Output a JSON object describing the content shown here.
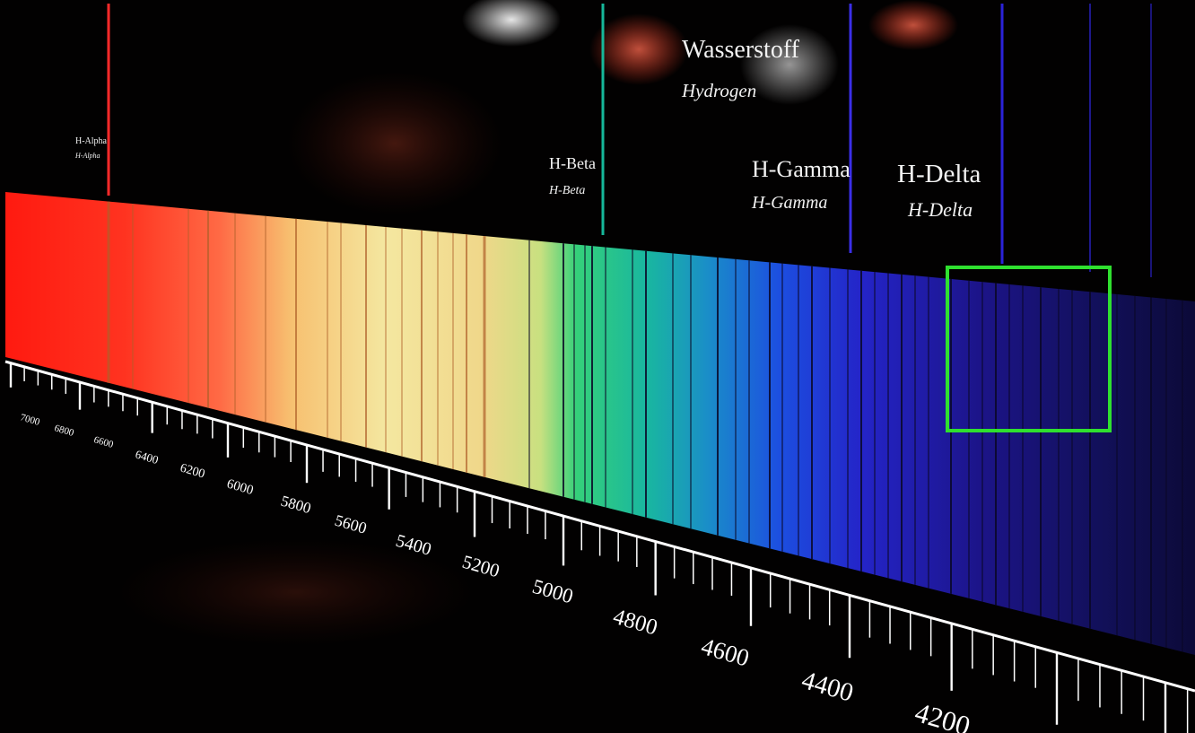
{
  "title": {
    "german": "Wasserstoff",
    "english": "Hydrogen"
  },
  "lines": [
    {
      "id": "h-alpha",
      "main": "H-Alpha",
      "sub": "H-Alpha",
      "color": "#ff2a2a",
      "wavelength": 6563
    },
    {
      "id": "h-beta",
      "main": "H-Beta",
      "sub": "H-Beta",
      "color": "#16b89a",
      "wavelength": 4861
    },
    {
      "id": "h-gamma",
      "main": "H-Gamma",
      "sub": "H-Gamma",
      "color": "#3a2ee8",
      "wavelength": 4340
    },
    {
      "id": "h-delta",
      "main": "H-Delta",
      "sub": "H-Delta",
      "color": "#2a22d8",
      "wavelength": 4102
    }
  ],
  "scale": {
    "labels": [
      "7000",
      "6800",
      "6600",
      "6400",
      "6200",
      "6000",
      "5800",
      "5600",
      "5400",
      "5200",
      "5000",
      "4800",
      "4600",
      "4400",
      "4200"
    ]
  },
  "highlight": {
    "color": "#2fe02f"
  }
}
